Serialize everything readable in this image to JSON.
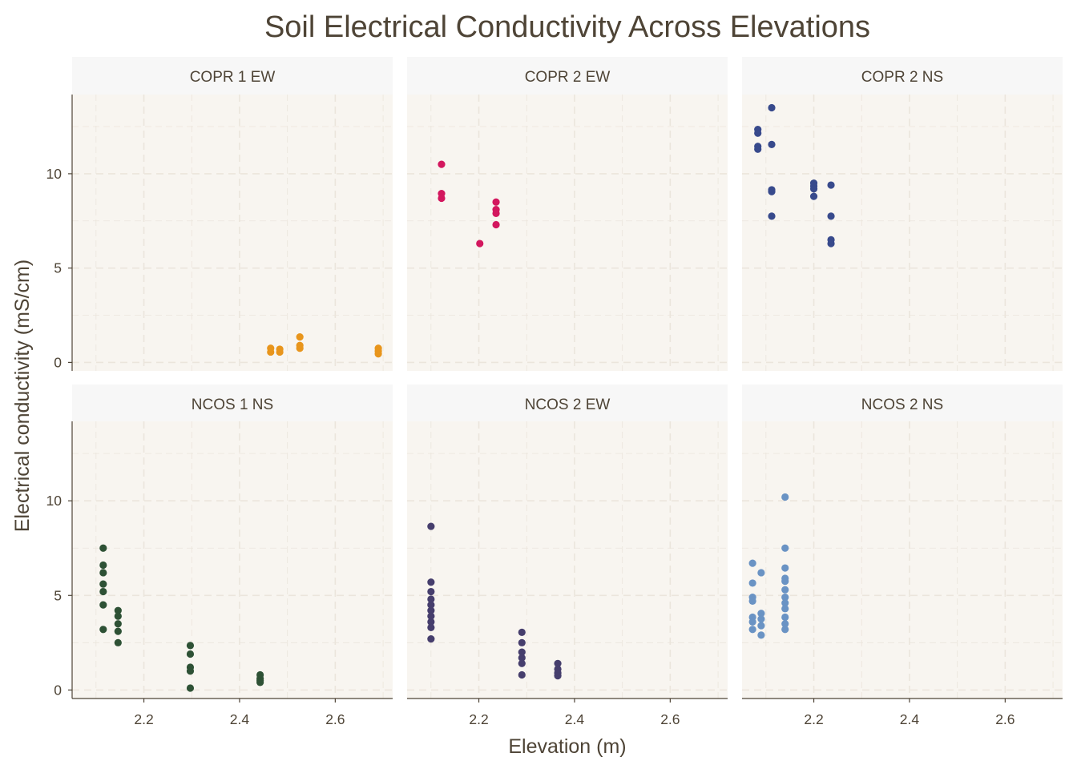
{
  "chart_data": {
    "type": "scatter",
    "title": "Soil Electrical Conductivity Across Elevations",
    "xlabel": "Elevation (m)",
    "ylabel": "Electrical conductivity (mS/cm)",
    "xlim": [
      2.05,
      2.72
    ],
    "ylim": [
      -0.45,
      14.2
    ],
    "x_ticks": [
      "2.2",
      "2.4",
      "2.6"
    ],
    "y_ticks": [
      "0",
      "5",
      "10"
    ],
    "grid": true,
    "legend": "none",
    "facets": [
      {
        "name": "COPR 1 EW",
        "color": "#e8951c",
        "points": [
          [
            2.465,
            0.55
          ],
          [
            2.465,
            0.75
          ],
          [
            2.484,
            0.55
          ],
          [
            2.484,
            0.7
          ],
          [
            2.526,
            0.75
          ],
          [
            2.526,
            0.9
          ],
          [
            2.526,
            1.35
          ],
          [
            2.69,
            0.45
          ],
          [
            2.69,
            0.6
          ],
          [
            2.69,
            0.75
          ]
        ]
      },
      {
        "name": "COPR 2 EW",
        "color": "#d3175e",
        "points": [
          [
            2.122,
            10.5
          ],
          [
            2.122,
            8.95
          ],
          [
            2.122,
            8.7
          ],
          [
            2.202,
            6.3
          ],
          [
            2.236,
            8.5
          ],
          [
            2.236,
            8.1
          ],
          [
            2.236,
            7.9
          ],
          [
            2.236,
            7.3
          ]
        ]
      },
      {
        "name": "COPR 2 NS",
        "color": "#384a8c",
        "points": [
          [
            2.083,
            12.35
          ],
          [
            2.083,
            12.15
          ],
          [
            2.083,
            11.45
          ],
          [
            2.083,
            11.3
          ],
          [
            2.112,
            13.5
          ],
          [
            2.112,
            11.55
          ],
          [
            2.112,
            9.15
          ],
          [
            2.112,
            9.05
          ],
          [
            2.112,
            7.75
          ],
          [
            2.2,
            9.5
          ],
          [
            2.2,
            9.35
          ],
          [
            2.2,
            9.2
          ],
          [
            2.2,
            8.8
          ],
          [
            2.236,
            9.4
          ],
          [
            2.236,
            7.75
          ],
          [
            2.236,
            6.5
          ],
          [
            2.236,
            6.3
          ]
        ]
      },
      {
        "name": "NCOS 1 NS",
        "color": "#2e5135",
        "points": [
          [
            2.115,
            7.5
          ],
          [
            2.115,
            6.6
          ],
          [
            2.115,
            6.2
          ],
          [
            2.115,
            5.6
          ],
          [
            2.115,
            5.2
          ],
          [
            2.115,
            4.5
          ],
          [
            2.115,
            3.2
          ],
          [
            2.146,
            4.2
          ],
          [
            2.146,
            3.9
          ],
          [
            2.146,
            3.5
          ],
          [
            2.146,
            3.1
          ],
          [
            2.146,
            2.5
          ],
          [
            2.297,
            2.35
          ],
          [
            2.297,
            1.9
          ],
          [
            2.297,
            1.2
          ],
          [
            2.297,
            1.0
          ],
          [
            2.297,
            0.1
          ],
          [
            2.443,
            0.8
          ],
          [
            2.443,
            0.6
          ],
          [
            2.443,
            0.5
          ],
          [
            2.443,
            0.4
          ]
        ]
      },
      {
        "name": "NCOS 2 EW",
        "color": "#463e6d",
        "points": [
          [
            2.1,
            8.65
          ],
          [
            2.1,
            5.7
          ],
          [
            2.1,
            5.2
          ],
          [
            2.1,
            4.8
          ],
          [
            2.1,
            4.5
          ],
          [
            2.1,
            4.2
          ],
          [
            2.1,
            3.9
          ],
          [
            2.1,
            3.6
          ],
          [
            2.1,
            3.3
          ],
          [
            2.1,
            2.7
          ],
          [
            2.29,
            3.05
          ],
          [
            2.29,
            2.5
          ],
          [
            2.29,
            2.0
          ],
          [
            2.29,
            1.7
          ],
          [
            2.29,
            1.4
          ],
          [
            2.29,
            0.8
          ],
          [
            2.365,
            1.4
          ],
          [
            2.365,
            1.1
          ],
          [
            2.365,
            0.9
          ],
          [
            2.365,
            0.75
          ]
        ]
      },
      {
        "name": "NCOS 2 NS",
        "color": "#6a93c4",
        "points": [
          [
            2.072,
            6.7
          ],
          [
            2.072,
            5.65
          ],
          [
            2.072,
            4.9
          ],
          [
            2.072,
            4.7
          ],
          [
            2.072,
            3.85
          ],
          [
            2.072,
            3.6
          ],
          [
            2.072,
            3.2
          ],
          [
            2.09,
            6.2
          ],
          [
            2.09,
            4.05
          ],
          [
            2.09,
            3.75
          ],
          [
            2.09,
            3.4
          ],
          [
            2.09,
            2.9
          ],
          [
            2.14,
            10.2
          ],
          [
            2.14,
            7.5
          ],
          [
            2.14,
            6.45
          ],
          [
            2.14,
            5.9
          ],
          [
            2.14,
            5.75
          ],
          [
            2.14,
            5.3
          ],
          [
            2.14,
            4.9
          ],
          [
            2.14,
            4.6
          ],
          [
            2.14,
            4.3
          ],
          [
            2.14,
            3.85
          ],
          [
            2.14,
            3.5
          ],
          [
            2.14,
            3.2
          ]
        ]
      }
    ]
  },
  "colors": {
    "panel_background": "#f8f5f0",
    "strip_background": "#f7f7f7",
    "grid": "#ebe5dc",
    "axis": "#4e4436",
    "text": "#4e4436"
  }
}
